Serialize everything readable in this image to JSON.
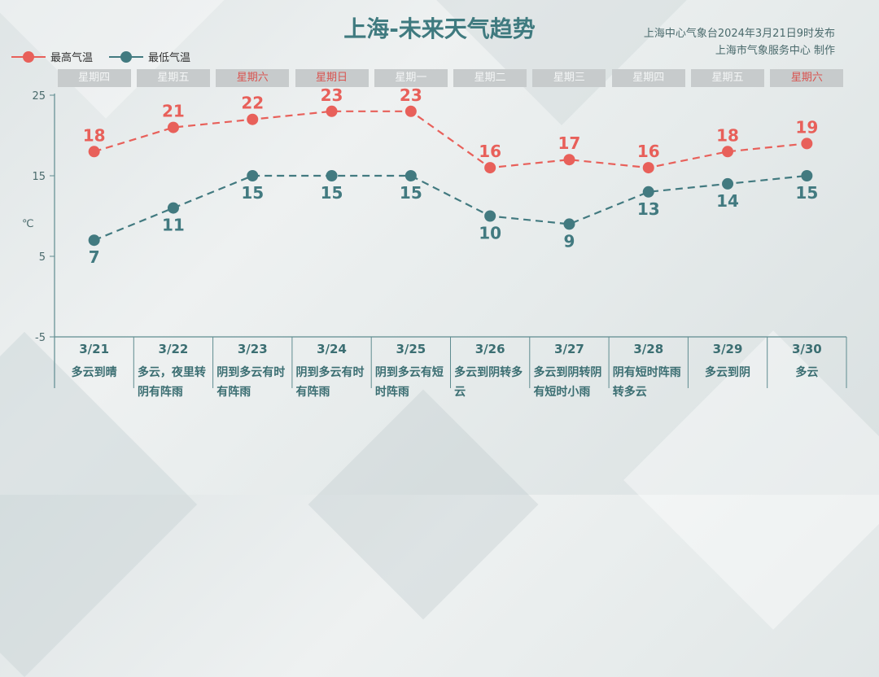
{
  "title": "上海-未来天气趋势",
  "source": {
    "line1": "上海中心气象台2024年3月21日9时发布",
    "line2": "上海市气象服务中心 制作"
  },
  "legend": {
    "high_label": "最高气温",
    "low_label": "最低气温"
  },
  "unit_label": "℃",
  "colors": {
    "high": "#e8605a",
    "low": "#427a80",
    "axis": "#5f8c90",
    "weekend": "#d9534f"
  },
  "days": [
    {
      "weekday": "星期四",
      "weekend": false,
      "date": "3/21",
      "desc": "多云到晴"
    },
    {
      "weekday": "星期五",
      "weekend": false,
      "date": "3/22",
      "desc": "多云，夜里转阴有阵雨"
    },
    {
      "weekday": "星期六",
      "weekend": true,
      "date": "3/23",
      "desc": "阴到多云有时有阵雨"
    },
    {
      "weekday": "星期日",
      "weekend": true,
      "date": "3/24",
      "desc": "阴到多云有时有阵雨"
    },
    {
      "weekday": "星期一",
      "weekend": false,
      "date": "3/25",
      "desc": "阴到多云有短时阵雨"
    },
    {
      "weekday": "星期二",
      "weekend": false,
      "date": "3/26",
      "desc": "多云到阴转多云"
    },
    {
      "weekday": "星期三",
      "weekend": false,
      "date": "3/27",
      "desc": "多云到阴转阴有短时小雨"
    },
    {
      "weekday": "星期四",
      "weekend": false,
      "date": "3/28",
      "desc": "阴有短时阵雨转多云"
    },
    {
      "weekday": "星期五",
      "weekend": false,
      "date": "3/29",
      "desc": "多云到阴"
    },
    {
      "weekday": "星期六",
      "weekend": true,
      "date": "3/30",
      "desc": "多云"
    }
  ],
  "chart_data": {
    "type": "line",
    "title": "上海-未来天气趋势",
    "x": [
      "3/21",
      "3/22",
      "3/23",
      "3/24",
      "3/25",
      "3/26",
      "3/27",
      "3/28",
      "3/29",
      "3/30"
    ],
    "series": [
      {
        "name": "最高气温",
        "values": [
          18,
          21,
          22,
          23,
          23,
          16,
          17,
          16,
          18,
          19
        ]
      },
      {
        "name": "最低气温",
        "values": [
          7,
          11,
          15,
          15,
          15,
          10,
          9,
          13,
          14,
          15
        ]
      }
    ],
    "ylabel": "℃",
    "ylim": [
      -5,
      25
    ],
    "yticks": [
      25,
      15,
      5,
      -5
    ],
    "grid": false,
    "legend": "top-left"
  }
}
